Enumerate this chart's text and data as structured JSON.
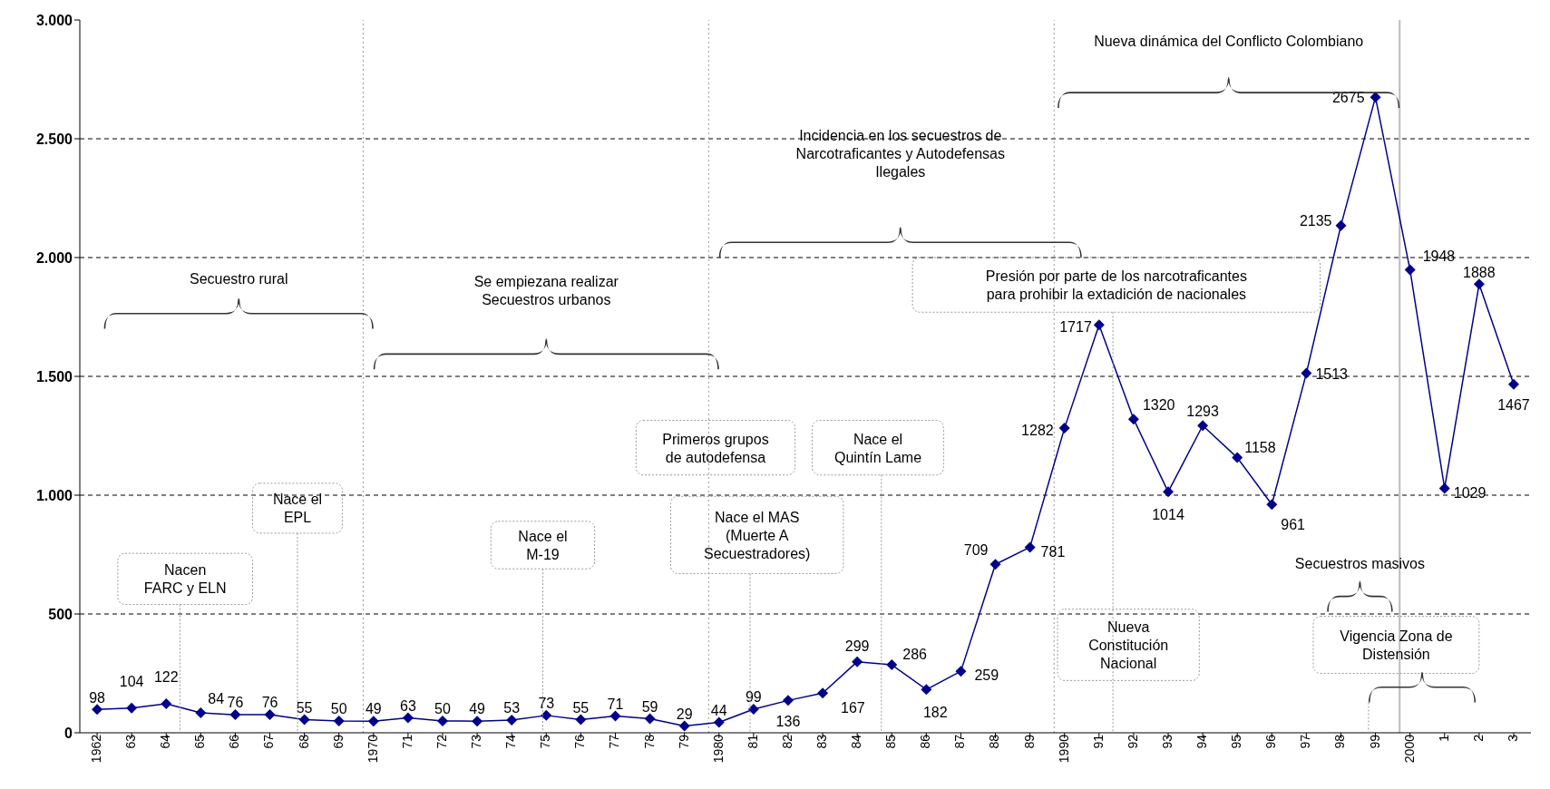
{
  "chart_data": {
    "type": "line",
    "categories": [
      "1962",
      "63",
      "64",
      "65",
      "66",
      "67",
      "68",
      "69",
      "1970",
      "71",
      "72",
      "73",
      "74",
      "75",
      "76",
      "77",
      "78",
      "79",
      "1980",
      "81",
      "82",
      "83",
      "84",
      "85",
      "86",
      "87",
      "88",
      "89",
      "1990",
      "91",
      "92",
      "93",
      "94",
      "95",
      "96",
      "97",
      "98",
      "99",
      "2000",
      "1",
      "2",
      "3"
    ],
    "series": [
      {
        "color": "#00008b",
        "values": [
          98,
          104,
          122,
          84,
          76,
          76,
          55,
          50,
          49,
          63,
          50,
          49,
          53,
          73,
          55,
          71,
          59,
          29,
          44,
          99,
          136,
          167,
          299,
          286,
          182,
          259,
          709,
          781,
          1282,
          1717,
          1320,
          1014,
          1293,
          1158,
          961,
          1513,
          2135,
          2675,
          1948,
          1029,
          1888,
          1467
        ]
      }
    ],
    "ylim": [
      0,
      3000
    ],
    "yticks": [
      0,
      500,
      {
        "value": 1000,
        "label": "1.000"
      },
      {
        "value": 1500,
        "label": "1.500"
      },
      {
        "value": 2000,
        "label": "2.000"
      },
      {
        "value": 2500,
        "label": "2.500"
      },
      {
        "value": 3000,
        "label": "3.000"
      }
    ],
    "grid": "y",
    "marker": "diamond",
    "line_style": "solid",
    "data_labels": true,
    "ref_lines": [
      {
        "axis": "x",
        "value": "1970",
        "color": "#999999",
        "line_style": "dotted"
      },
      {
        "axis": "x",
        "value": "1980",
        "color": "#999999",
        "line_style": "dotted"
      },
      {
        "axis": "x",
        "value": "1990",
        "color": "#999999",
        "line_style": "dotted"
      },
      {
        "axis": "x",
        "value": "2000",
        "color": "#bbbbbb",
        "line_style": "solid"
      }
    ],
    "annotations": [
      "Secuestro rural",
      "Se empiezana realizar\nSecuestros urbanos",
      "Incidencia en los secuestros  de\nNarcotraficantes y Autodefensas\nIlegales",
      "Nueva dinámica del Conflicto Colombiano",
      "Presión por parte de los narcotraficantes\npara prohibir la extadición de nacionales",
      "Nacen\nFARC y ELN",
      "Nace el\nEPL",
      "Nace el\nM-19",
      "Primeros grupos\nde autodefensa",
      "Nace el  MAS\n(Muerte A\nSecuestradores)",
      "Nace el\nQuintín Lame",
      "Nueva\nConstitución\nNacional",
      "Secuestros masivos",
      "Vigencia Zona de\nDistensión"
    ]
  }
}
